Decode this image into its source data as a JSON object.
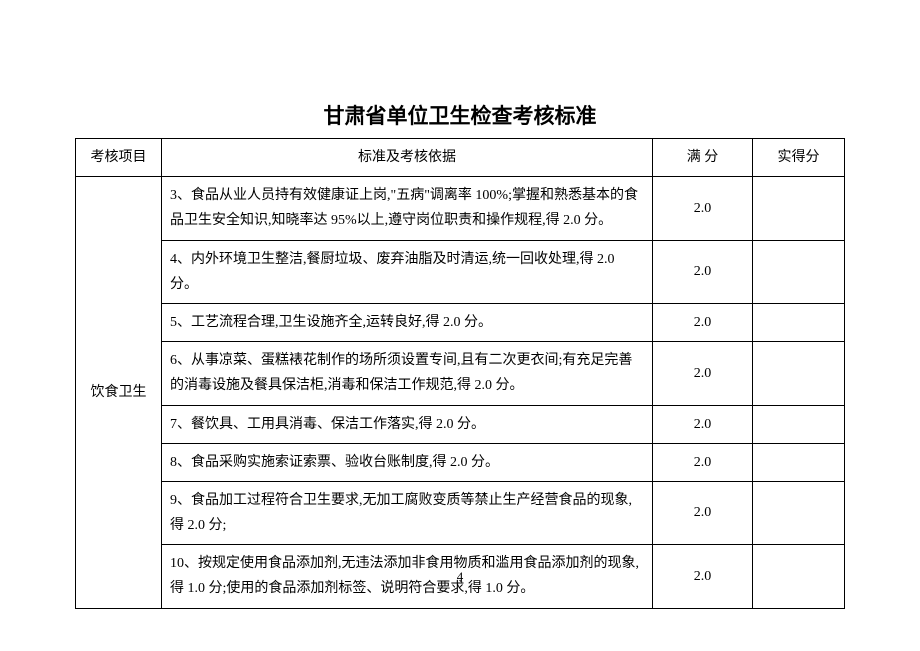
{
  "title": "甘肃省单位卫生检查考核标准",
  "headers": {
    "category": "考核项目",
    "criteria": "标准及考核依据",
    "full_score": "满  分",
    "actual_score": "实得分"
  },
  "category_label": "饮食卫生",
  "rows": [
    {
      "criteria": "3、食品从业人员持有效健康证上岗,\"五病\"调离率 100%;掌握和熟悉基本的食品卫生安全知识,知晓率达 95%以上,遵守岗位职责和操作规程,得 2.0 分。",
      "score": "2.0",
      "actual": ""
    },
    {
      "criteria": "4、内外环境卫生整洁,餐厨垃圾、废弃油脂及时清运,统一回收处理,得 2.0 分。",
      "score": "2.0",
      "actual": ""
    },
    {
      "criteria": "5、工艺流程合理,卫生设施齐全,运转良好,得 2.0 分。",
      "score": "2.0",
      "actual": ""
    },
    {
      "criteria": "6、从事凉菜、蛋糕裱花制作的场所须设置专间,且有二次更衣间;有充足完善的消毒设施及餐具保洁柜,消毒和保洁工作规范,得 2.0 分。",
      "score": "2.0",
      "actual": ""
    },
    {
      "criteria": "7、餐饮具、工用具消毒、保洁工作落实,得 2.0 分。",
      "score": "2.0",
      "actual": ""
    },
    {
      "criteria": "8、食品采购实施索证索票、验收台账制度,得 2.0 分。",
      "score": "2.0",
      "actual": ""
    },
    {
      "criteria": "9、食品加工过程符合卫生要求,无加工腐败变质等禁止生产经营食品的现象,得 2.0 分;",
      "score": "2.0",
      "actual": ""
    },
    {
      "criteria": "10、按规定使用食品添加剂,无违法添加非食用物质和滥用食品添加剂的现象,得 1.0 分;使用的食品添加剂标签、说明符合要求,得 1.0 分。",
      "score": "2.0",
      "actual": ""
    }
  ],
  "page_number": "4"
}
